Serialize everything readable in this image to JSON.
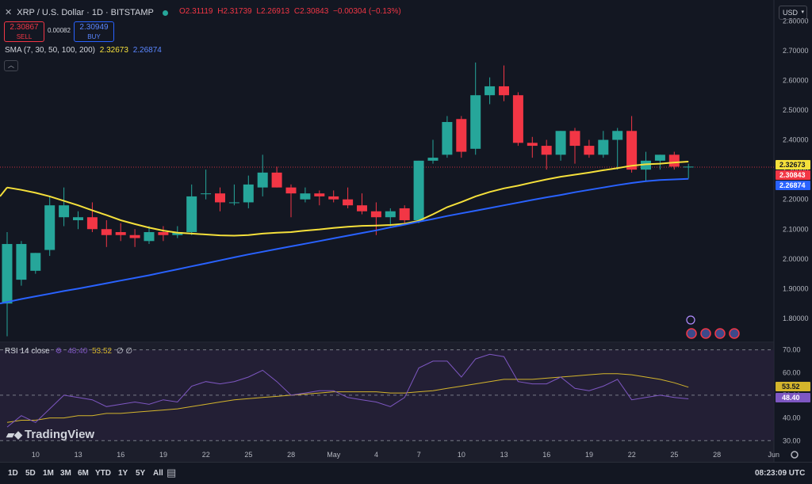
{
  "header": {
    "symbol": "XRP / U.S. Dollar · 1D · BITSTAMP",
    "open": "O2.31119",
    "high": "H2.31739",
    "low": "L2.26913",
    "close": "C2.30843",
    "change": "−0.00304 (−0.13%)",
    "sell_price": "2.30867",
    "sell_label": "SELL",
    "spread": "0.00082",
    "buy_price": "2.30949",
    "buy_label": "BUY",
    "sma_label": "SMA (7, 30, 50, 100, 200)",
    "sma_val1": "2.32673",
    "sma_val2": "2.26874",
    "rsi_label": "RSI 14 close",
    "rsi_val1": "48.40",
    "rsi_val2": "53.52",
    "rsi_extra": "∅ ∅"
  },
  "currency": "USD",
  "logo": "TradingView",
  "bottom": {
    "timeframes": [
      "1D",
      "5D",
      "1M",
      "3M",
      "6M",
      "YTD",
      "1Y",
      "5Y",
      "All"
    ],
    "clock": "08:23:09 UTC"
  },
  "colors": {
    "up": "#26a69a",
    "down": "#f23645",
    "sma_fast": "#f5e03b",
    "sma_slow": "#2962ff",
    "rsi": "#7e57c2",
    "rsi_ma": "#d4b52c"
  },
  "chart_data": {
    "type": "candlestick",
    "price_axis": {
      "range": [
        1.72,
        2.87
      ],
      "ticks": [
        "2.80000",
        "2.70000",
        "2.60000",
        "2.50000",
        "2.40000",
        "2.30000",
        "2.20000",
        "2.10000",
        "2.00000",
        "1.90000",
        "1.80000"
      ]
    },
    "rsi_axis": {
      "range": [
        28,
        73
      ],
      "ticks": [
        "70.00",
        "60.00",
        "50.00",
        "40.00",
        "30.00"
      ],
      "bands": [
        70,
        50,
        30
      ]
    },
    "x_labels": [
      {
        "i": 1,
        "label": "10"
      },
      {
        "i": 4,
        "label": "13"
      },
      {
        "i": 7,
        "label": "16"
      },
      {
        "i": 10,
        "label": "19"
      },
      {
        "i": 13,
        "label": "22"
      },
      {
        "i": 16,
        "label": "25"
      },
      {
        "i": 19,
        "label": "28"
      },
      {
        "i": 22,
        "label": "May"
      },
      {
        "i": 25,
        "label": "4"
      },
      {
        "i": 28,
        "label": "7"
      },
      {
        "i": 31,
        "label": "10"
      },
      {
        "i": 34,
        "label": "13"
      },
      {
        "i": 37,
        "label": "16"
      },
      {
        "i": 40,
        "label": "19"
      },
      {
        "i": 43,
        "label": "22"
      },
      {
        "i": 46,
        "label": "25"
      },
      {
        "i": 49,
        "label": "28"
      },
      {
        "i": 53,
        "label": "Jun"
      }
    ],
    "candles": [
      {
        "o": 1.85,
        "h": 2.09,
        "l": 1.74,
        "c": 2.05
      },
      {
        "o": 1.93,
        "h": 2.06,
        "l": 1.91,
        "c": 2.05
      },
      {
        "o": 1.96,
        "h": 2.02,
        "l": 1.95,
        "c": 2.02
      },
      {
        "o": 2.03,
        "h": 2.21,
        "l": 2.01,
        "c": 2.18
      },
      {
        "o": 2.14,
        "h": 2.24,
        "l": 2.11,
        "c": 2.18
      },
      {
        "o": 2.13,
        "h": 2.16,
        "l": 2.1,
        "c": 2.14
      },
      {
        "o": 2.14,
        "h": 2.19,
        "l": 2.09,
        "c": 2.1
      },
      {
        "o": 2.1,
        "h": 2.13,
        "l": 2.04,
        "c": 2.08
      },
      {
        "o": 2.09,
        "h": 2.12,
        "l": 2.06,
        "c": 2.08
      },
      {
        "o": 2.08,
        "h": 2.1,
        "l": 2.04,
        "c": 2.07
      },
      {
        "o": 2.06,
        "h": 2.11,
        "l": 2.05,
        "c": 2.09
      },
      {
        "o": 2.09,
        "h": 2.11,
        "l": 2.06,
        "c": 2.08
      },
      {
        "o": 2.08,
        "h": 2.11,
        "l": 2.07,
        "c": 2.09
      },
      {
        "o": 2.09,
        "h": 2.25,
        "l": 2.08,
        "c": 2.21
      },
      {
        "o": 2.22,
        "h": 2.3,
        "l": 2.2,
        "c": 2.22
      },
      {
        "o": 2.22,
        "h": 2.24,
        "l": 2.16,
        "c": 2.19
      },
      {
        "o": 2.19,
        "h": 2.25,
        "l": 2.18,
        "c": 2.19
      },
      {
        "o": 2.19,
        "h": 2.28,
        "l": 2.17,
        "c": 2.25
      },
      {
        "o": 2.24,
        "h": 2.35,
        "l": 2.21,
        "c": 2.29
      },
      {
        "o": 2.29,
        "h": 2.31,
        "l": 2.24,
        "c": 2.24
      },
      {
        "o": 2.24,
        "h": 2.25,
        "l": 2.14,
        "c": 2.22
      },
      {
        "o": 2.2,
        "h": 2.24,
        "l": 2.19,
        "c": 2.22
      },
      {
        "o": 2.22,
        "h": 2.23,
        "l": 2.18,
        "c": 2.21
      },
      {
        "o": 2.21,
        "h": 2.23,
        "l": 2.19,
        "c": 2.2
      },
      {
        "o": 2.2,
        "h": 2.24,
        "l": 2.17,
        "c": 2.18
      },
      {
        "o": 2.18,
        "h": 2.22,
        "l": 2.15,
        "c": 2.16
      },
      {
        "o": 2.16,
        "h": 2.19,
        "l": 2.08,
        "c": 2.14
      },
      {
        "o": 2.14,
        "h": 2.17,
        "l": 2.11,
        "c": 2.16
      },
      {
        "o": 2.17,
        "h": 2.18,
        "l": 2.12,
        "c": 2.13
      },
      {
        "o": 2.13,
        "h": 2.33,
        "l": 2.12,
        "c": 2.33
      },
      {
        "o": 2.33,
        "h": 2.4,
        "l": 2.32,
        "c": 2.34
      },
      {
        "o": 2.35,
        "h": 2.48,
        "l": 2.34,
        "c": 2.46
      },
      {
        "o": 2.47,
        "h": 2.48,
        "l": 2.34,
        "c": 2.36
      },
      {
        "o": 2.37,
        "h": 2.66,
        "l": 2.35,
        "c": 2.55
      },
      {
        "o": 2.55,
        "h": 2.61,
        "l": 2.52,
        "c": 2.58
      },
      {
        "o": 2.58,
        "h": 2.65,
        "l": 2.53,
        "c": 2.55
      },
      {
        "o": 2.55,
        "h": 2.56,
        "l": 2.38,
        "c": 2.39
      },
      {
        "o": 2.39,
        "h": 2.41,
        "l": 2.34,
        "c": 2.38
      },
      {
        "o": 2.38,
        "h": 2.4,
        "l": 2.3,
        "c": 2.35
      },
      {
        "o": 2.35,
        "h": 2.43,
        "l": 2.33,
        "c": 2.43
      },
      {
        "o": 2.43,
        "h": 2.44,
        "l": 2.32,
        "c": 2.38
      },
      {
        "o": 2.38,
        "h": 2.4,
        "l": 2.34,
        "c": 2.35
      },
      {
        "o": 2.35,
        "h": 2.43,
        "l": 2.34,
        "c": 2.4
      },
      {
        "o": 2.4,
        "h": 2.44,
        "l": 2.3,
        "c": 2.43
      },
      {
        "o": 2.43,
        "h": 2.48,
        "l": 2.29,
        "c": 2.3
      },
      {
        "o": 2.3,
        "h": 2.36,
        "l": 2.26,
        "c": 2.33
      },
      {
        "o": 2.33,
        "h": 2.35,
        "l": 2.3,
        "c": 2.35
      },
      {
        "o": 2.35,
        "h": 2.36,
        "l": 2.3,
        "c": 2.31
      },
      {
        "o": 2.31,
        "h": 2.32,
        "l": 2.27,
        "c": 2.31
      }
    ],
    "sma_fast": [
      2.24,
      2.232,
      2.222,
      2.21,
      2.195,
      2.18,
      2.163,
      2.147,
      2.13,
      2.117,
      2.105,
      2.095,
      2.088,
      2.085,
      2.082,
      2.079,
      2.078,
      2.08,
      2.085,
      2.088,
      2.09,
      2.095,
      2.099,
      2.104,
      2.108,
      2.111,
      2.112,
      2.114,
      2.118,
      2.128,
      2.15,
      2.174,
      2.191,
      2.21,
      2.225,
      2.237,
      2.246,
      2.257,
      2.267,
      2.276,
      2.283,
      2.29,
      2.298,
      2.305,
      2.313,
      2.318,
      2.32,
      2.324,
      2.327
    ],
    "sma_slow": [
      1.855,
      1.865,
      1.874,
      1.883,
      1.892,
      1.9,
      1.909,
      1.918,
      1.927,
      1.936,
      1.945,
      1.955,
      1.965,
      1.975,
      1.985,
      1.995,
      2.005,
      2.015,
      2.024,
      2.033,
      2.042,
      2.051,
      2.06,
      2.069,
      2.078,
      2.087,
      2.096,
      2.106,
      2.115,
      2.125,
      2.134,
      2.144,
      2.153,
      2.162,
      2.171,
      2.18,
      2.189,
      2.198,
      2.207,
      2.215,
      2.224,
      2.232,
      2.24,
      2.248,
      2.255,
      2.261,
      2.265,
      2.267,
      2.269
    ],
    "rsi": [
      36,
      41,
      38,
      44,
      50,
      49,
      48,
      45,
      46,
      47,
      46,
      48,
      47,
      54,
      56,
      55,
      56,
      58,
      61,
      56,
      50,
      51,
      52,
      52,
      49,
      48,
      47,
      45,
      49,
      62,
      65,
      65,
      58,
      66,
      68,
      67,
      56,
      55,
      55,
      58,
      53,
      52,
      54,
      57,
      48,
      49,
      50,
      49,
      48.4
    ],
    "rsi_ma": [
      38,
      39,
      39,
      40,
      40,
      41,
      41,
      42,
      42,
      42.5,
      43,
      43.5,
      44,
      45,
      46,
      47,
      48,
      48.5,
      49,
      49.5,
      50,
      50.5,
      51,
      51.5,
      51.5,
      51.5,
      51.5,
      51,
      51,
      51.5,
      52,
      53,
      54,
      55,
      56,
      57,
      57,
      57,
      57.5,
      58,
      58.5,
      59,
      59.5,
      59.5,
      59,
      58,
      57,
      55.5,
      53.52
    ],
    "price_tags": [
      "2.32673",
      "2.30843",
      "2.26874"
    ],
    "rsi_tags": [
      "53.52",
      "48.40"
    ]
  }
}
